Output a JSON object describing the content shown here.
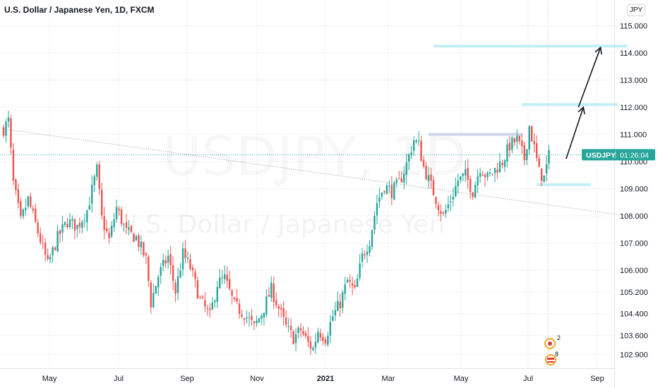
{
  "header": {
    "title": "U.S. Dollar / Japanese Yen, 1D, FXCM",
    "currency": "JPY"
  },
  "watermark": {
    "symbol": "USDJPY, 1D",
    "description": "U.S. Dollar / Japanese Yen"
  },
  "price_tag": {
    "symbol": "USDJPY",
    "countdown": "01:26:04",
    "color": "#26a69a"
  },
  "colors": {
    "up": "#26a69a",
    "down": "#ef5350",
    "trendline": "#9598a1",
    "zone": "#b2ebf2",
    "zone_blue": "#c5cae9",
    "arrow": "#131722"
  },
  "event_badges": {
    "japan_count": "2",
    "us_count": "8"
  },
  "chart_data": {
    "type": "candlestick",
    "title": "U.S. Dollar / Japanese Yen, 1D, FXCM",
    "y_ticks": [
      115.0,
      114.0,
      113.0,
      112.0,
      111.0,
      110.0,
      109.0,
      108.0,
      107.0,
      106.0,
      105.2,
      104.4,
      103.6,
      102.9
    ],
    "y_tick_labels": [
      "115.000",
      "114.000",
      "113.000",
      "112.000",
      "111.000",
      "110.000",
      "109.000",
      "108.000",
      "107.000",
      "106.000",
      "105.200",
      "104.400",
      "103.600",
      "102.900"
    ],
    "x_labels": [
      "May",
      "Jul",
      "Sep",
      "Nov",
      "2021",
      "Mar",
      "May",
      "Jul",
      "Sep"
    ],
    "x_label_bold": [
      false,
      false,
      false,
      false,
      true,
      false,
      false,
      false,
      false
    ],
    "ylim": [
      102.6,
      115.4
    ],
    "current_price": 110.25,
    "grid": true,
    "anchors": [
      {
        "t": 0,
        "p": 111.2
      },
      {
        "t": 2,
        "p": 111.5
      },
      {
        "t": 4,
        "p": 109.2
      },
      {
        "t": 7,
        "p": 107.8
      },
      {
        "t": 10,
        "p": 108.6
      },
      {
        "t": 14,
        "p": 107.4
      },
      {
        "t": 18,
        "p": 106.2
      },
      {
        "t": 22,
        "p": 107.2
      },
      {
        "t": 26,
        "p": 107.8
      },
      {
        "t": 30,
        "p": 107.6
      },
      {
        "t": 34,
        "p": 108.2
      },
      {
        "t": 38,
        "p": 109.7
      },
      {
        "t": 40,
        "p": 107.9
      },
      {
        "t": 43,
        "p": 107.1
      },
      {
        "t": 46,
        "p": 108.3
      },
      {
        "t": 50,
        "p": 107.4
      },
      {
        "t": 54,
        "p": 107.2
      },
      {
        "t": 58,
        "p": 106.4
      },
      {
        "t": 60,
        "p": 104.8
      },
      {
        "t": 63,
        "p": 105.8
      },
      {
        "t": 67,
        "p": 106.5
      },
      {
        "t": 70,
        "p": 105.2
      },
      {
        "t": 73,
        "p": 106.6
      },
      {
        "t": 76,
        "p": 106.1
      },
      {
        "t": 80,
        "p": 104.9
      },
      {
        "t": 84,
        "p": 104.3
      },
      {
        "t": 87,
        "p": 105.5
      },
      {
        "t": 90,
        "p": 105.7
      },
      {
        "t": 94,
        "p": 104.7
      },
      {
        "t": 98,
        "p": 104.4
      },
      {
        "t": 102,
        "p": 103.9
      },
      {
        "t": 105,
        "p": 104.4
      },
      {
        "t": 109,
        "p": 105.3
      },
      {
        "t": 112,
        "p": 104.6
      },
      {
        "t": 115,
        "p": 103.9
      },
      {
        "t": 118,
        "p": 103.5
      },
      {
        "t": 121,
        "p": 103.8
      },
      {
        "t": 124,
        "p": 103.3
      },
      {
        "t": 126,
        "p": 103.1
      },
      {
        "t": 128,
        "p": 103.8
      },
      {
        "t": 131,
        "p": 103.5
      },
      {
        "t": 134,
        "p": 104.3
      },
      {
        "t": 137,
        "p": 104.8
      },
      {
        "t": 140,
        "p": 105.6
      },
      {
        "t": 143,
        "p": 105.2
      },
      {
        "t": 146,
        "p": 106.5
      },
      {
        "t": 149,
        "p": 107.1
      },
      {
        "t": 152,
        "p": 108.5
      },
      {
        "t": 155,
        "p": 109.1
      },
      {
        "t": 158,
        "p": 108.9
      },
      {
        "t": 161,
        "p": 109.2
      },
      {
        "t": 164,
        "p": 109.9
      },
      {
        "t": 167,
        "p": 110.8
      },
      {
        "t": 169,
        "p": 110.6
      },
      {
        "t": 171,
        "p": 109.8
      },
      {
        "t": 174,
        "p": 109.1
      },
      {
        "t": 177,
        "p": 108.4
      },
      {
        "t": 179,
        "p": 108.0
      },
      {
        "t": 182,
        "p": 108.6
      },
      {
        "t": 185,
        "p": 109.3
      },
      {
        "t": 188,
        "p": 109.5
      },
      {
        "t": 191,
        "p": 108.9
      },
      {
        "t": 194,
        "p": 109.8
      },
      {
        "t": 197,
        "p": 109.4
      },
      {
        "t": 200,
        "p": 109.7
      },
      {
        "t": 203,
        "p": 110.0
      },
      {
        "t": 206,
        "p": 110.6
      },
      {
        "t": 209,
        "p": 110.8
      },
      {
        "t": 212,
        "p": 110.1
      },
      {
        "t": 214,
        "p": 111.3
      },
      {
        "t": 216,
        "p": 110.5
      },
      {
        "t": 218,
        "p": 109.6
      },
      {
        "t": 220,
        "p": 109.4
      },
      {
        "t": 222,
        "p": 110.2
      }
    ],
    "trendline": {
      "start": {
        "t": 0,
        "p": 111.2
      },
      "end": {
        "t": 254,
        "p": 108.0
      }
    },
    "zones": [
      {
        "t1": 175,
        "t2": 254,
        "p": 114.25,
        "color": "#b2ebf2"
      },
      {
        "t1": 211,
        "t2": 250,
        "p": 112.1,
        "color": "#b2ebf2"
      },
      {
        "t1": 173,
        "t2": 211,
        "p": 111.0,
        "color": "#c5cae9"
      },
      {
        "t1": 217,
        "t2": 239,
        "p": 109.15,
        "color": "#b2ebf2"
      }
    ],
    "projection_arrows": [
      {
        "from": {
          "t": 229,
          "p": 110.1
        },
        "to": {
          "t": 236,
          "p": 112.0
        }
      },
      {
        "from": {
          "t": 234,
          "p": 112.0
        },
        "to": {
          "t": 243,
          "p": 114.2
        }
      }
    ]
  }
}
